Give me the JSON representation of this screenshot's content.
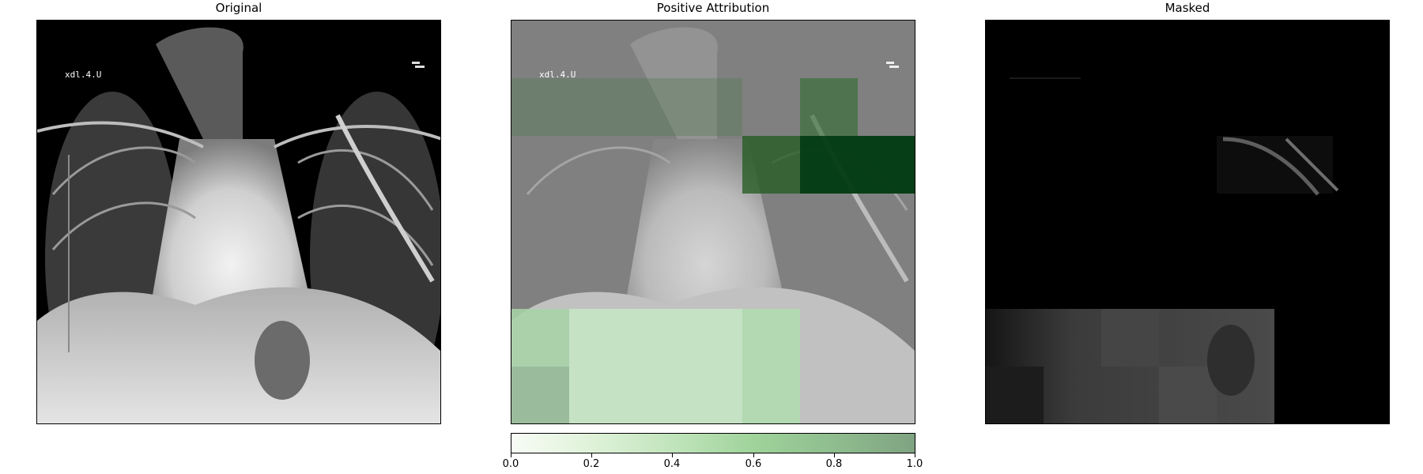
{
  "panels": [
    {
      "title": "Original"
    },
    {
      "title": "Positive Attribution"
    },
    {
      "title": "Masked"
    }
  ],
  "overlay_text": "xdl.4.U",
  "colorbar": {
    "ticks": [
      "0.0",
      "0.2",
      "0.4",
      "0.6",
      "0.8",
      "1.0"
    ],
    "range": [
      0.0,
      1.0
    ],
    "colormap": "greens",
    "colors": {
      "low": "#f7fcf5",
      "high": "#7fa381"
    }
  }
}
